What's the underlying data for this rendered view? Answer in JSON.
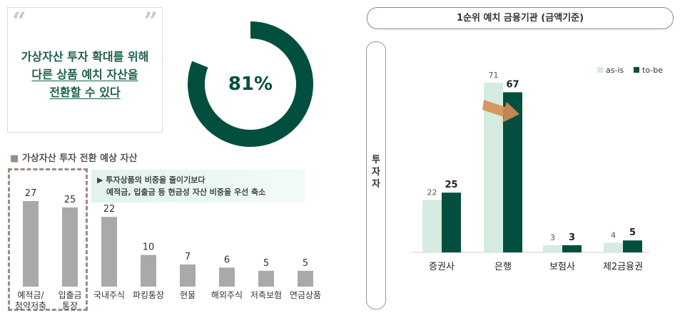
{
  "quote": {
    "line1": "가상자산 투자 확대를 위해",
    "line2": "다른 상품 예치 자산을",
    "line3": "전환할 수 있다",
    "open_mark": "“",
    "close_mark": "”"
  },
  "gauge": {
    "value": 81,
    "label": "81%"
  },
  "left_section": {
    "title": "가상자산 투자 전환 예상 자산",
    "note_line1": "투자상품의 비중을 줄이기보다",
    "note_line2": "예적금, 입출금 등 현금성 자산 비중을 우선 축소"
  },
  "right_section": {
    "title": "1순위 예치 금융기관 (금액기준)",
    "side_label": "투자자"
  },
  "colors": {
    "dark_green": "#034f3f",
    "light_green": "#d5ebe0",
    "gray_bar": "#a9a9a9",
    "arrow": "#d68d53"
  },
  "chart_data": [
    {
      "type": "bar",
      "title": "가상자산 투자 전환 예상 자산",
      "categories": [
        "예적금/\n청약저축",
        "입출금\n통장",
        "국내주식",
        "파킹통장",
        "현물",
        "해외주식",
        "저축보험",
        "연금상품"
      ],
      "category_lines": [
        [
          "예적금/",
          "청약저축"
        ],
        [
          "입출금",
          "통장"
        ],
        [
          "국내주식"
        ],
        [
          "파킹통장"
        ],
        [
          "현물"
        ],
        [
          "해외주식"
        ],
        [
          "저축보험"
        ],
        [
          "연금상품"
        ]
      ],
      "values": [
        27,
        25,
        22,
        10,
        7,
        6,
        5,
        5
      ],
      "value_labels": [
        "27",
        "25",
        "22",
        "10",
        "7",
        "6",
        "5",
        "5"
      ],
      "ylim": [
        0,
        27
      ],
      "grid": false
    },
    {
      "type": "bar",
      "title": "1순위 예치 금융기관 (금액기준)",
      "categories": [
        "증권사",
        "은행",
        "보험사",
        "제2금융권"
      ],
      "series": [
        {
          "name": "as-is",
          "values": [
            22,
            71,
            3,
            4
          ],
          "labels": [
            "22",
            "71",
            "3",
            "4"
          ]
        },
        {
          "name": "to-be",
          "values": [
            25,
            67,
            3,
            5
          ],
          "labels": [
            "25",
            "67",
            "3",
            "5"
          ]
        }
      ],
      "ylim": [
        0,
        71
      ],
      "legend": "top-right",
      "grid": false
    }
  ]
}
